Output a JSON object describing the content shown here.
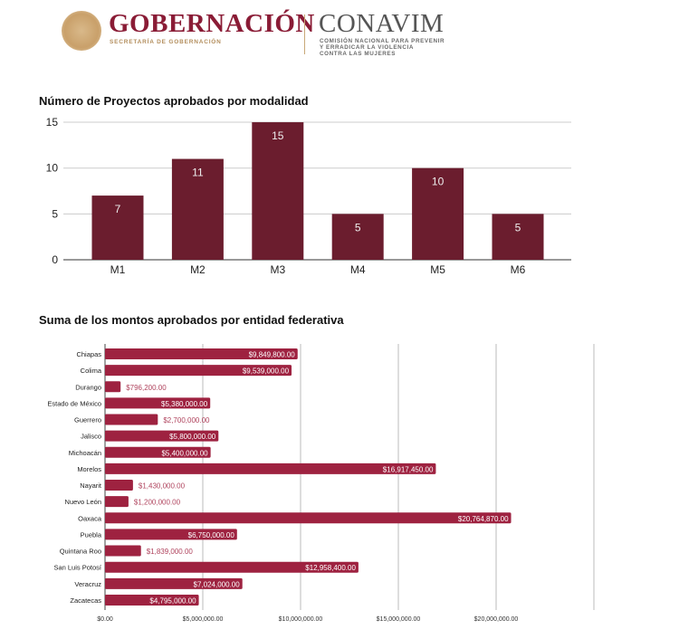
{
  "header": {
    "logo_main": "GOBERNACIÓN",
    "logo_main_sub": "SECRETARÍA DE GOBERNACIÓN",
    "logo_second": "CONAVIM",
    "logo_second_sub": [
      "COMISIÓN NACIONAL PARA PREVENIR",
      "Y ERRADICAR LA VIOLENCIA",
      "CONTRA LAS MUJERES"
    ]
  },
  "colors": {
    "bar1": "#6b1d2e",
    "bar2": "#9e2240",
    "label_out": "#b0445e"
  },
  "chart_data": [
    {
      "type": "bar",
      "title": "Número de Proyectos aprobados por modalidad",
      "categories": [
        "M1",
        "M2",
        "M3",
        "M4",
        "M5",
        "M6"
      ],
      "values": [
        7,
        11,
        15,
        5,
        10,
        5
      ],
      "ylim": [
        0,
        15
      ],
      "yticks": [
        "0",
        "5",
        "10",
        "15"
      ],
      "xlabel": "",
      "ylabel": "",
      "grid": true
    },
    {
      "type": "bar",
      "orientation": "horizontal",
      "title": "Suma de los montos aprobados por entidad federativa",
      "categories": [
        "Chiapas",
        "Colima",
        "Durango",
        "Estado de México",
        "Guerrero",
        "Jalisco",
        "Michoacán",
        "Morelos",
        "Nayarit",
        "Nuevo León",
        "Oaxaca",
        "Puebla",
        "Quintana Roo",
        "San Luis Potosí",
        "Veracruz",
        "Zacatecas"
      ],
      "values": [
        9849800,
        9539000,
        796200,
        5380000,
        2700000,
        5800000,
        5400000,
        16917450,
        1430000,
        1200000,
        20764870,
        6750000,
        1839000,
        12958400,
        7024000,
        4795000
      ],
      "labels": [
        "$9,849,800.00",
        "$9,539,000.00",
        "$796,200.00",
        "$5,380,000.00",
        "$2,700,000.00",
        "$5,800,000.00",
        "$5,400,000.00",
        "$16,917,450.00",
        "$1,430,000.00",
        "$1,200,000.00",
        "$20,764,870.00",
        "$6,750,000.00",
        "$1,839,000.00",
        "$12,958,400.00",
        "$7,024,000.00",
        "$4,795,000.00"
      ],
      "xlim": [
        0,
        25000000
      ],
      "xticks": [
        0,
        5000000,
        10000000,
        15000000,
        20000000
      ],
      "xtick_labels": [
        "$0.00",
        "$5,000,000.00",
        "$10,000,000.00",
        "$15,000,000.00",
        "$20,000,000.00"
      ],
      "grid": true
    }
  ]
}
